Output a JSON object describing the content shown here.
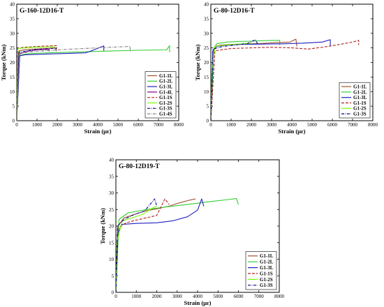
{
  "chart_data": [
    {
      "type": "line",
      "title": "G-160-12D16-T",
      "xlabel": "Strain (με)",
      "ylabel": "Torque (kNm)",
      "xlim": [
        0,
        8000
      ],
      "ylim": [
        0,
        40
      ],
      "xticks": [
        0,
        1000,
        2000,
        3000,
        4000,
        5000,
        6000,
        7000,
        8000
      ],
      "yticks": [
        0,
        5,
        10,
        15,
        20,
        25,
        30,
        35,
        40
      ],
      "legend_position": "bottom-right",
      "series": [
        {
          "name": "G1-1L",
          "color": "#a0522d",
          "dash": "solid",
          "x": [
            0,
            60,
            120,
            400,
            900,
            1400,
            1900,
            1950,
            1950
          ],
          "y": [
            0,
            22.5,
            24.0,
            24.4,
            24.6,
            24.8,
            25.0,
            24.0,
            25.2
          ]
        },
        {
          "name": "G1-2L",
          "color": "#32cd32",
          "dash": "solid",
          "x": [
            0,
            80,
            500,
            1500,
            3000,
            4500,
            6000,
            7400,
            7550,
            7550
          ],
          "y": [
            0,
            22.3,
            23.0,
            23.3,
            23.6,
            23.9,
            24.2,
            24.3,
            25.8,
            23.5
          ]
        },
        {
          "name": "G1-3L",
          "color": "#1f1fbf",
          "dash": "solid",
          "x": [
            0,
            150,
            400,
            1500,
            2500,
            3400,
            3700,
            4300,
            4300
          ],
          "y": [
            0,
            22.3,
            22.6,
            22.9,
            23.1,
            23.3,
            24.0,
            25.7,
            24.0
          ]
        },
        {
          "name": "G1-4L",
          "color": "#800080",
          "dash": "solid",
          "x": [
            0,
            100,
            500,
            1000,
            1600,
            1600
          ],
          "y": [
            0,
            22.8,
            23.8,
            24.3,
            24.5,
            23.8
          ]
        },
        {
          "name": "G1-1S",
          "color": "#b22222",
          "dash": "dashed",
          "x": [
            0,
            40,
            300,
            800,
            1300,
            1800,
            2000
          ],
          "y": [
            0,
            24.8,
            25.2,
            25.4,
            25.6,
            25.7,
            25.8
          ]
        },
        {
          "name": "G1-2S",
          "color": "#7cfc00",
          "dash": "solid",
          "x": [
            0,
            60,
            400,
            900,
            1400,
            1900
          ],
          "y": [
            0,
            24.8,
            25.0,
            25.2,
            25.3,
            25.4
          ]
        },
        {
          "name": "G1-3S",
          "color": "#00008b",
          "dash": "dashdot",
          "x": [
            0,
            100,
            500,
            1000,
            1500,
            2000
          ],
          "y": [
            0,
            23.5,
            24.0,
            24.5,
            24.7,
            24.9
          ]
        },
        {
          "name": "G1-4S",
          "color": "#808080",
          "dash": "dashdot",
          "x": [
            0,
            150,
            1000,
            2000,
            3000,
            4000,
            5600,
            5600
          ],
          "y": [
            0,
            23.2,
            23.8,
            24.3,
            24.7,
            25.0,
            25.5,
            23.6
          ]
        }
      ]
    },
    {
      "type": "line",
      "title": "G-80-12D16-T",
      "xlabel": "Strain (με)",
      "ylabel": "Torque (kNm)",
      "xlim": [
        0,
        8000
      ],
      "ylim": [
        0,
        40
      ],
      "xticks": [
        0,
        1000,
        2000,
        3000,
        4000,
        5000,
        6000,
        7000,
        8000
      ],
      "yticks": [
        0,
        5,
        10,
        15,
        20,
        25,
        30,
        35,
        40
      ],
      "legend_position": "bottom-right",
      "series": [
        {
          "name": "G1-1L",
          "color": "#a0522d",
          "dash": "solid",
          "x": [
            0,
            100,
            200,
            500,
            1000,
            1600,
            2400,
            3200,
            3900,
            4200,
            4250
          ],
          "y": [
            0,
            23.5,
            25.5,
            26.0,
            26.2,
            26.3,
            26.5,
            26.8,
            27.0,
            28.0,
            25.5
          ]
        },
        {
          "name": "G1-2L",
          "color": "#32cd32",
          "dash": "solid",
          "x": [
            0,
            150,
            300,
            800,
            1300,
            2000,
            2700,
            3400,
            3400
          ],
          "y": [
            0,
            25.0,
            26.5,
            27.0,
            27.2,
            27.3,
            27.5,
            27.6,
            26.0
          ]
        },
        {
          "name": "G1-3L",
          "color": "#1f1fbf",
          "dash": "solid",
          "x": [
            0,
            100,
            300,
            800,
            1500,
            2500,
            3500,
            4500,
            5500,
            5900,
            5900
          ],
          "y": [
            0,
            24.0,
            25.5,
            26.0,
            26.2,
            26.3,
            26.4,
            26.6,
            27.0,
            27.8,
            25.5
          ]
        },
        {
          "name": "G1-1S",
          "color": "#b22222",
          "dash": "dashed",
          "x": [
            0,
            200,
            1000,
            2000,
            3000,
            4000,
            4800,
            5500,
            6200,
            7000,
            7300,
            7300
          ],
          "y": [
            0,
            24.0,
            24.8,
            25.0,
            25.2,
            25.0,
            24.6,
            25.2,
            26.0,
            27.0,
            27.6,
            26.0
          ]
        },
        {
          "name": "G1-2S",
          "color": "#7cfc00",
          "dash": "solid",
          "x": [
            0,
            50,
            200,
            700,
            1300,
            1800,
            2000
          ],
          "y": [
            0,
            17.0,
            25.5,
            26.0,
            26.3,
            26.5,
            26.6
          ]
        },
        {
          "name": "G1-3S",
          "color": "#00008b",
          "dash": "dashdot",
          "x": [
            0,
            100,
            600,
            1200,
            1800,
            2200,
            2300
          ],
          "y": [
            0,
            24.5,
            25.5,
            26.0,
            26.5,
            27.8,
            26.5
          ]
        }
      ]
    },
    {
      "type": "line",
      "title": "G-80-12D19-T",
      "xlabel": "Strain (με)",
      "ylabel": "Torque (kNm)",
      "xlim": [
        0,
        8000
      ],
      "ylim": [
        0,
        40
      ],
      "xticks": [
        0,
        1000,
        2000,
        3000,
        4000,
        5000,
        6000,
        7000,
        8000
      ],
      "yticks": [
        0,
        5,
        10,
        15,
        20,
        25,
        30,
        35,
        40
      ],
      "legend_position": "bottom-right",
      "series": [
        {
          "name": "G1-1L",
          "color": "#a0522d",
          "dash": "solid",
          "x": [
            0,
            100,
            400,
            900,
            1400,
            2000,
            2600,
            3100,
            3600,
            3900
          ],
          "y": [
            0,
            20.0,
            22.5,
            23.5,
            24.5,
            25.2,
            26.0,
            27.0,
            27.8,
            28.2
          ]
        },
        {
          "name": "G1-2L",
          "color": "#32cd32",
          "dash": "solid",
          "x": [
            0,
            150,
            600,
            1500,
            2500,
            3500,
            4500,
            5500,
            5900,
            6000
          ],
          "y": [
            0,
            22.0,
            24.0,
            25.0,
            25.8,
            26.5,
            27.3,
            28.0,
            28.3,
            26.5
          ]
        },
        {
          "name": "G1-3L",
          "color": "#1f1fbf",
          "dash": "solid",
          "x": [
            0,
            100,
            300,
            1000,
            2000,
            2800,
            3500,
            4000,
            4200,
            4300
          ],
          "y": [
            0,
            18.0,
            20.5,
            20.8,
            21.0,
            21.6,
            22.8,
            24.8,
            28.2,
            26.0
          ]
        },
        {
          "name": "G1-1S",
          "color": "#b22222",
          "dash": "dashed",
          "x": [
            0,
            100,
            500,
            1000,
            1500,
            2000,
            2400,
            2600
          ],
          "y": [
            0,
            19.5,
            21.0,
            21.8,
            22.5,
            23.2,
            28.2,
            26.5
          ]
        },
        {
          "name": "G1-2S",
          "color": "#7cfc00",
          "dash": "solid",
          "x": [
            0,
            50,
            300,
            800,
            1300,
            1800,
            2000
          ],
          "y": [
            0,
            15.0,
            21.5,
            22.5,
            23.5,
            25.5,
            26.0
          ]
        },
        {
          "name": "G1-3S",
          "color": "#00008b",
          "dash": "dashdot",
          "x": [
            0,
            80,
            400,
            900,
            1400,
            1900,
            2000
          ],
          "y": [
            0,
            20.0,
            22.0,
            23.5,
            24.5,
            28.2,
            26.0
          ]
        }
      ]
    }
  ]
}
